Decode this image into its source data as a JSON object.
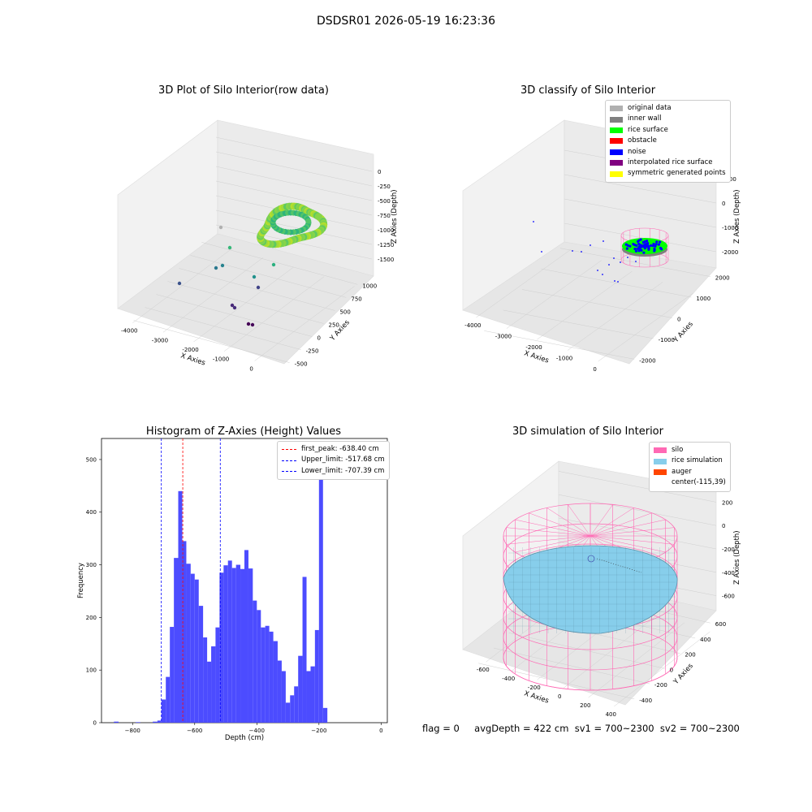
{
  "suptitle": "DSDSR01 2026-05-19 16:23:36",
  "footer": {
    "flag": "flag = 0",
    "avg": "avgDepth = 422 cm  sv1 = 700~2300  sv2 = 700~2300"
  },
  "chart_data": [
    {
      "type": "scatter",
      "title": "3D Plot of Silo Interior(row data)",
      "xlabel": "X Axies",
      "ylabel": "Y Axies",
      "zlabel": "Z Axies (Depth)",
      "x_ticks": [
        "-4000",
        "-3000",
        "-2000",
        "-1000",
        "0"
      ],
      "y_ticks": [
        "-500",
        "-250",
        "0",
        "250",
        "500",
        "750",
        "1000"
      ],
      "z_ticks": [
        "0",
        "-250",
        "-500",
        "-750",
        "-1000",
        "-1250",
        "-1500"
      ],
      "colormap": "viridis"
    },
    {
      "type": "scatter",
      "title": "3D classify of Silo Interior",
      "xlabel": "X Axies",
      "ylabel": "Y Axies",
      "zlabel": "Z Axies (Depth)",
      "x_ticks": [
        "-4000",
        "-3000",
        "-2000",
        "-1000",
        "0"
      ],
      "y_ticks": [
        "-2000",
        "-1000",
        "0",
        "1000",
        "2000"
      ],
      "z_ticks": [
        "1000",
        "0",
        "-1000",
        "-2000"
      ],
      "legend": [
        {
          "label": "original data",
          "color": "#b0b0b0"
        },
        {
          "label": "inner wall",
          "color": "#808080"
        },
        {
          "label": "rice surface",
          "color": "#00ff00"
        },
        {
          "label": "obstacle",
          "color": "#ff0000"
        },
        {
          "label": "noise",
          "color": "#0000ff"
        },
        {
          "label": "interpolated rice surface",
          "color": "#800080"
        },
        {
          "label": "symmetric generated points",
          "color": "#ffff00"
        }
      ]
    },
    {
      "type": "bar",
      "title": "Histogram of Z-Axies (Height) Values",
      "xlabel": "Depth (cm)",
      "ylabel": "Frequency",
      "xlim": [
        -900,
        20
      ],
      "ylim": [
        0,
        540
      ],
      "x_ticks": [
        -800,
        -600,
        -400,
        -200,
        0
      ],
      "y_ticks": [
        0,
        100,
        200,
        300,
        400,
        500
      ],
      "bar_color": "#4c4cff",
      "bins": [
        {
          "x0": -860,
          "x1": -845,
          "v": 2
        },
        {
          "x0": -790,
          "x1": -775,
          "v": 1
        },
        {
          "x0": -735,
          "x1": -720,
          "v": 2
        },
        {
          "x0": -720,
          "x1": -707,
          "v": 4
        },
        {
          "x0": -707,
          "x1": -693,
          "v": 44
        },
        {
          "x0": -693,
          "x1": -680,
          "v": 87
        },
        {
          "x0": -680,
          "x1": -667,
          "v": 182
        },
        {
          "x0": -667,
          "x1": -653,
          "v": 313
        },
        {
          "x0": -653,
          "x1": -640,
          "v": 440
        },
        {
          "x0": -640,
          "x1": -627,
          "v": 345
        },
        {
          "x0": -627,
          "x1": -613,
          "v": 302
        },
        {
          "x0": -613,
          "x1": -600,
          "v": 283
        },
        {
          "x0": -600,
          "x1": -587,
          "v": 272
        },
        {
          "x0": -587,
          "x1": -573,
          "v": 222
        },
        {
          "x0": -573,
          "x1": -560,
          "v": 162
        },
        {
          "x0": -560,
          "x1": -547,
          "v": 116
        },
        {
          "x0": -547,
          "x1": -533,
          "v": 145
        },
        {
          "x0": -533,
          "x1": -520,
          "v": 181
        },
        {
          "x0": -520,
          "x1": -507,
          "v": 285
        },
        {
          "x0": -507,
          "x1": -493,
          "v": 299
        },
        {
          "x0": -493,
          "x1": -480,
          "v": 308
        },
        {
          "x0": -480,
          "x1": -467,
          "v": 294
        },
        {
          "x0": -467,
          "x1": -453,
          "v": 300
        },
        {
          "x0": -453,
          "x1": -440,
          "v": 292
        },
        {
          "x0": -440,
          "x1": -427,
          "v": 328
        },
        {
          "x0": -427,
          "x1": -413,
          "v": 293
        },
        {
          "x0": -413,
          "x1": -400,
          "v": 232
        },
        {
          "x0": -400,
          "x1": -387,
          "v": 214
        },
        {
          "x0": -387,
          "x1": -373,
          "v": 181
        },
        {
          "x0": -373,
          "x1": -360,
          "v": 184
        },
        {
          "x0": -360,
          "x1": -347,
          "v": 173
        },
        {
          "x0": -347,
          "x1": -333,
          "v": 155
        },
        {
          "x0": -333,
          "x1": -320,
          "v": 118
        },
        {
          "x0": -320,
          "x1": -307,
          "v": 98
        },
        {
          "x0": -307,
          "x1": -293,
          "v": 38
        },
        {
          "x0": -293,
          "x1": -280,
          "v": 52
        },
        {
          "x0": -280,
          "x1": -267,
          "v": 69
        },
        {
          "x0": -267,
          "x1": -253,
          "v": 127
        },
        {
          "x0": -253,
          "x1": -240,
          "v": 277
        },
        {
          "x0": -240,
          "x1": -227,
          "v": 98
        },
        {
          "x0": -227,
          "x1": -213,
          "v": 107
        },
        {
          "x0": -213,
          "x1": -200,
          "v": 176
        },
        {
          "x0": -200,
          "x1": -187,
          "v": 510
        },
        {
          "x0": -187,
          "x1": -173,
          "v": 28
        }
      ],
      "vlines": [
        {
          "label": "first_peak: -638.40 cm",
          "x": -638.4,
          "color": "#ff0000"
        },
        {
          "label": "Upper_limit: -517.68 cm",
          "x": -517.68,
          "color": "#0000ff"
        },
        {
          "label": "Lower_limit: -707.39 cm",
          "x": -707.39,
          "color": "#0000ff"
        }
      ]
    },
    {
      "type": "area",
      "title": "3D simulation of Silo Interior",
      "xlabel": "X Axies",
      "ylabel": "Y Axies",
      "zlabel": "Z Axies (Depth)",
      "x_ticks": [
        "-600",
        "-400",
        "-200",
        "0",
        "200",
        "400"
      ],
      "y_ticks": [
        "-400",
        "-200",
        "0",
        "200",
        "400",
        "600"
      ],
      "z_ticks": [
        "200",
        "0",
        "-200",
        "-400",
        "-600"
      ],
      "legend": [
        {
          "label": "silo",
          "color": "#ff69b4"
        },
        {
          "label": "rice simulation",
          "color": "#87ceeb"
        },
        {
          "label": "auger",
          "color": "#ff4500"
        },
        {
          "label": "center(-115,39)",
          "color": ""
        }
      ]
    }
  ]
}
